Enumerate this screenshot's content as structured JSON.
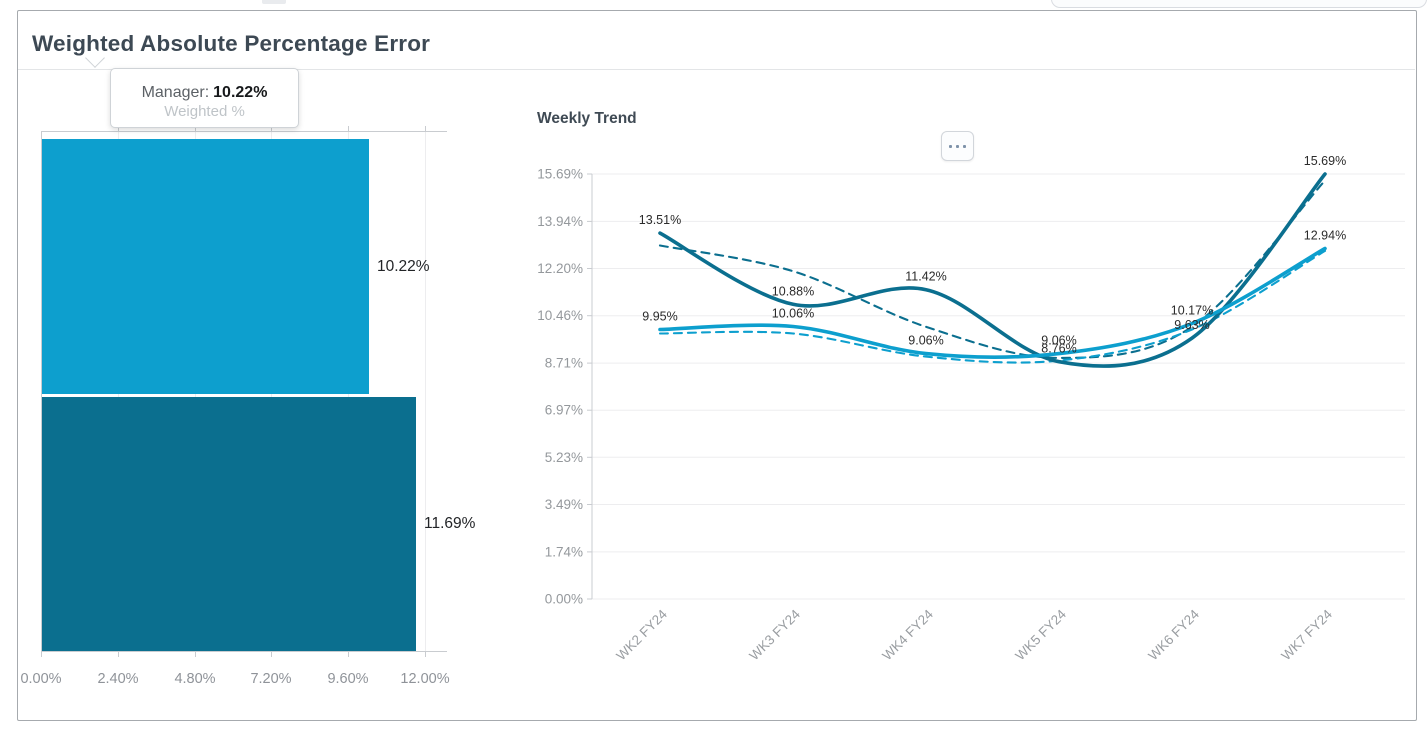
{
  "page": {
    "title": "Weighted Absolute Percentage Error"
  },
  "tooltip": {
    "series_label": "Manager:",
    "value": "10.22%",
    "measure_label": "Weighted %"
  },
  "menu_button": {
    "icon": "ellipsis-icon"
  },
  "chart_data": [
    {
      "type": "bar",
      "name": "weighted-percent-bars",
      "orientation": "horizontal",
      "categories": [
        "Manager",
        ""
      ],
      "values": [
        10.22,
        11.69
      ],
      "value_labels": [
        "10.22%",
        "11.69%"
      ],
      "colors": [
        "#0d9fce",
        "#0b6f8f"
      ],
      "xlabel": "",
      "ylabel": "Weighted %",
      "xlim": [
        0,
        12
      ],
      "x_tick_values": [
        0,
        2.4,
        4.8,
        7.2,
        9.6,
        12
      ],
      "x_tick_labels": [
        "0.00%",
        "2.40%",
        "4.80%",
        "7.20%",
        "9.60%",
        "12.00%"
      ],
      "grid": "vertical",
      "legend": "none"
    },
    {
      "type": "line",
      "name": "weekly-trend",
      "title": "Weekly Trend",
      "categories": [
        "WK2 FY24",
        "WK3 FY24",
        "WK4 FY24",
        "WK5 FY24",
        "WK6 FY24",
        "WK7 FY24"
      ],
      "ylim": [
        0,
        15.69
      ],
      "y_tick_values": [
        0,
        1.74,
        3.49,
        5.23,
        6.97,
        8.71,
        10.46,
        12.2,
        13.94,
        15.69
      ],
      "y_tick_labels": [
        "0.00%",
        "1.74%",
        "3.49%",
        "5.23%",
        "6.97%",
        "8.71%",
        "10.46%",
        "12.20%",
        "13.94%",
        "15.69%"
      ],
      "series": [
        {
          "name": "dark-solid",
          "style": "solid",
          "color": "#0b6f8f",
          "values": [
            13.51,
            10.88,
            11.42,
            8.76,
            9.63,
            15.69
          ],
          "point_labels": [
            "13.51%",
            "10.88%",
            "11.42%",
            "8.76%",
            "9.63%",
            "15.69%"
          ]
        },
        {
          "name": "light-solid",
          "style": "solid",
          "color": "#0d9fce",
          "values": [
            9.95,
            10.06,
            9.06,
            9.06,
            10.17,
            12.94
          ],
          "point_labels": [
            "9.95%",
            "10.06%",
            "9.06%",
            "9.06%",
            "10.17%",
            "12.94%"
          ]
        },
        {
          "name": "dark-dashed-trend",
          "style": "dashed",
          "color": "#0b6f8f",
          "estimated": true,
          "values": [
            13.05,
            12.1,
            10.05,
            8.9,
            10.05,
            15.45
          ]
        },
        {
          "name": "light-dashed-trend",
          "style": "dashed",
          "color": "#0d9fce",
          "estimated": true,
          "values": [
            9.8,
            9.8,
            8.95,
            8.8,
            9.95,
            12.85
          ]
        }
      ],
      "grid": "horizontal",
      "legend": "none"
    }
  ]
}
